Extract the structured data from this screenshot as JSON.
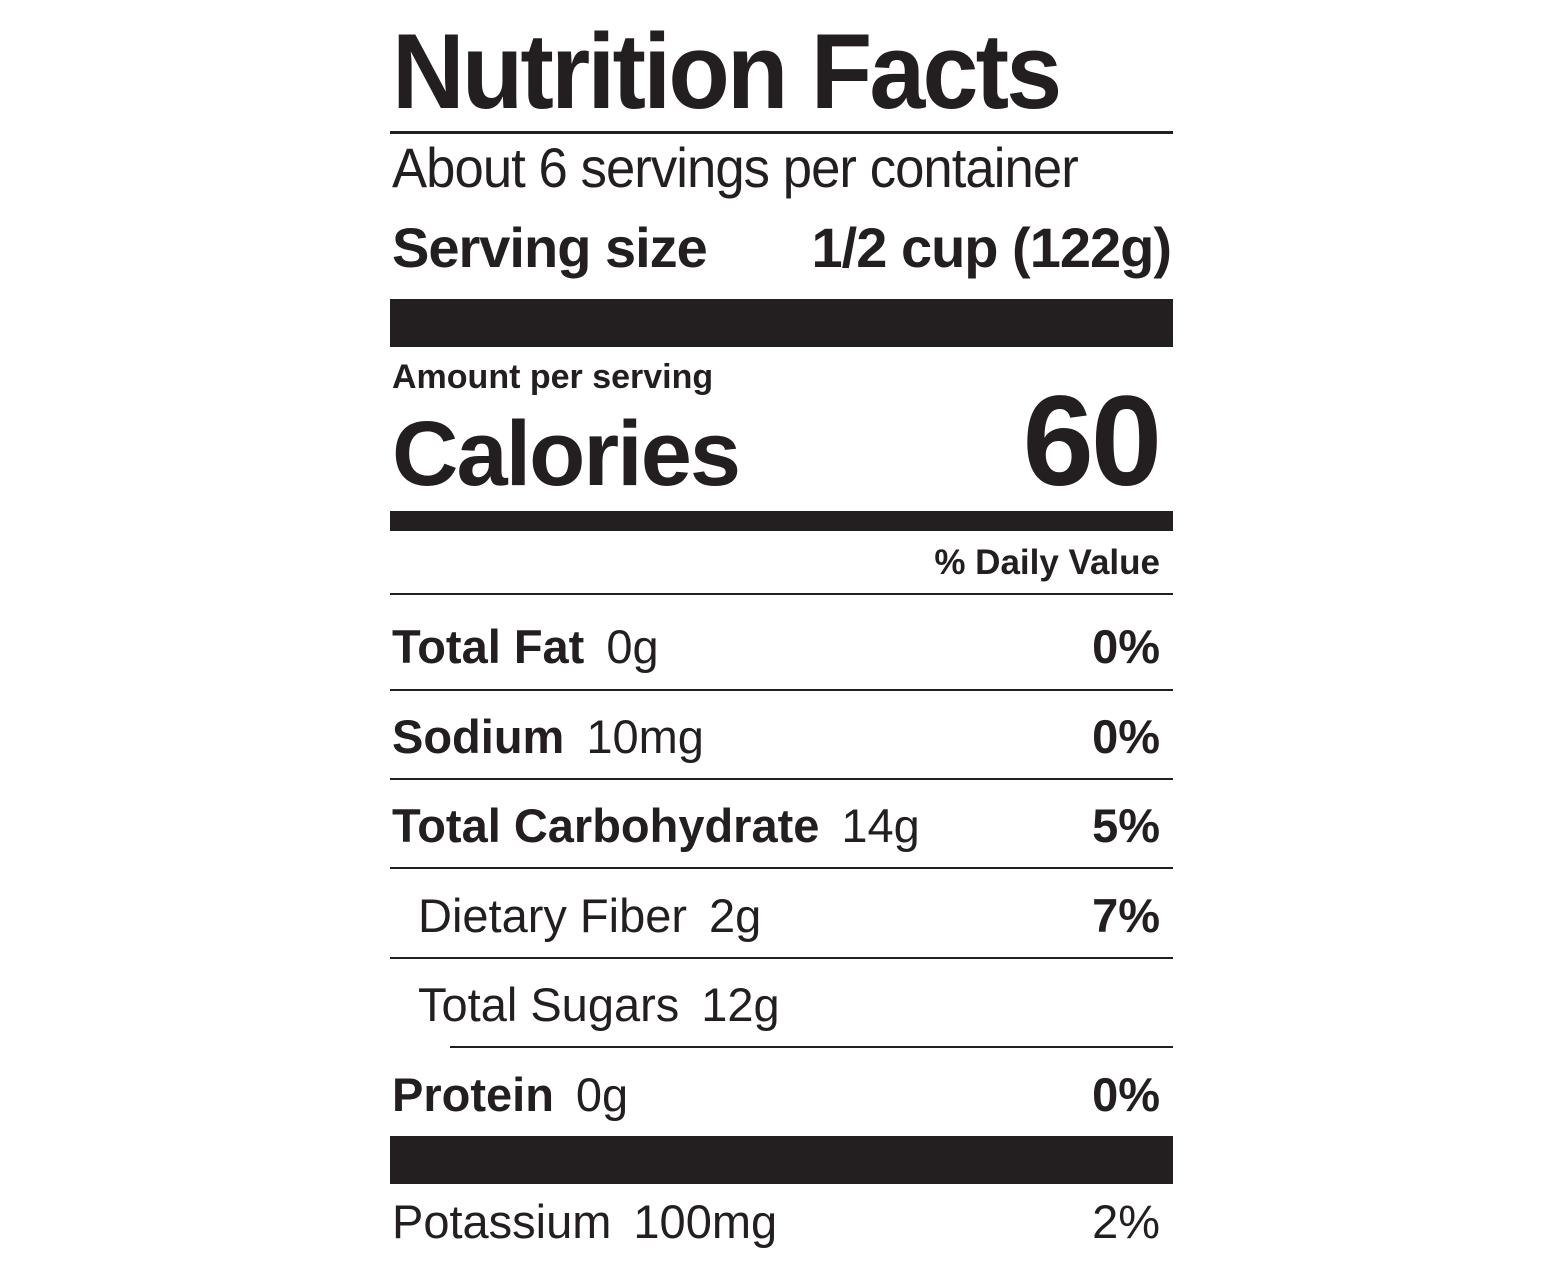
{
  "label": {
    "title": "Nutrition Facts",
    "servings_per_container": "About 6 servings per container",
    "serving_size_label": "Serving size",
    "serving_size_value": "1/2 cup (122g)",
    "amount_per_serving": "Amount per serving",
    "calories_label": "Calories",
    "calories_value": "60",
    "daily_value_header": "% Daily Value",
    "nutrients": [
      {
        "name": "Total Fat",
        "amount": "0g",
        "daily_value": "0%"
      },
      {
        "name": "Sodium",
        "amount": "10mg",
        "daily_value": "0%"
      },
      {
        "name": "Total Carbohydrate",
        "amount": "14g",
        "daily_value": "5%"
      },
      {
        "name": "Dietary Fiber",
        "amount": "2g",
        "daily_value": "7%"
      },
      {
        "name": "Total Sugars",
        "amount": "12g",
        "daily_value": ""
      },
      {
        "name": "Protein",
        "amount": "0g",
        "daily_value": "0%"
      }
    ],
    "minerals": [
      {
        "name": "Potassium",
        "amount": "100mg",
        "daily_value": "2%"
      }
    ]
  }
}
